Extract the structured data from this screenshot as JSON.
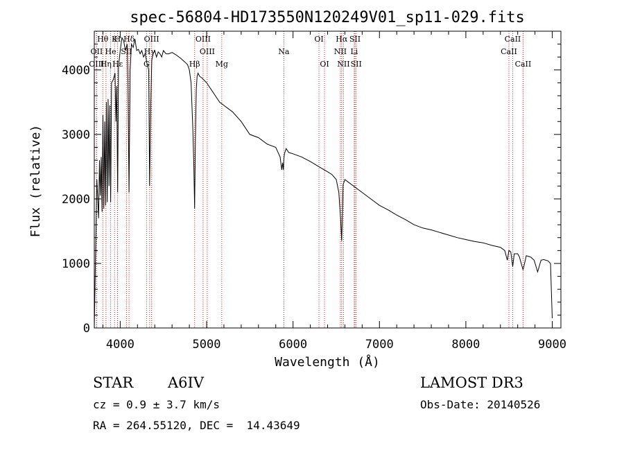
{
  "chart_data": {
    "type": "line",
    "title": "spec-56804-HD173550N120249V01_sp11-029.fits",
    "xlabel": "Wavelength (Å)",
    "ylabel": "Flux (relative)",
    "xlim": [
      3700,
      9100
    ],
    "ylim": [
      0,
      4600
    ],
    "xticks": [
      4000,
      5000,
      6000,
      7000,
      8000,
      9000
    ],
    "xtick_labels": [
      "4000",
      "5000",
      "6000",
      "7000",
      "8000",
      "9000"
    ],
    "yticks": [
      0,
      1000,
      2000,
      3000,
      4000
    ],
    "ytick_labels": [
      "0",
      "1000",
      "2000",
      "3000",
      "4000"
    ],
    "grid": false,
    "series": [
      {
        "name": "spectrum",
        "x": [
          3700,
          3730,
          3750,
          3760,
          3770,
          3780,
          3790,
          3800,
          3810,
          3820,
          3830,
          3840,
          3850,
          3860,
          3870,
          3880,
          3889,
          3900,
          3920,
          3940,
          3950,
          3960,
          3970,
          3980,
          4000,
          4020,
          4040,
          4060,
          4080,
          4090,
          4102,
          4115,
          4130,
          4150,
          4170,
          4190,
          4210,
          4230,
          4250,
          4270,
          4290,
          4310,
          4330,
          4340,
          4350,
          4365,
          4380,
          4400,
          4420,
          4440,
          4460,
          4480,
          4500,
          4530,
          4560,
          4600,
          4650,
          4700,
          4750,
          4780,
          4800,
          4820,
          4840,
          4852,
          4861,
          4870,
          4880,
          4890,
          4900,
          4920,
          4950,
          5000,
          5050,
          5100,
          5150,
          5200,
          5250,
          5300,
          5400,
          5500,
          5600,
          5700,
          5800,
          5850,
          5870,
          5880,
          5889,
          5893,
          5900,
          5920,
          5950,
          6000,
          6100,
          6200,
          6300,
          6400,
          6450,
          6500,
          6530,
          6550,
          6563,
          6570,
          6580,
          6600,
          6650,
          6700,
          6800,
          6900,
          7000,
          7100,
          7200,
          7300,
          7400,
          7500,
          7600,
          7700,
          7800,
          7900,
          8000,
          8100,
          8200,
          8300,
          8400,
          8450,
          8480,
          8498,
          8520,
          8542,
          8560,
          8600,
          8620,
          8662,
          8700,
          8750,
          8790,
          8830,
          8870,
          8900,
          8950,
          8980,
          9000
        ],
        "values": [
          0,
          2300,
          1700,
          2600,
          2050,
          2650,
          1800,
          3300,
          1850,
          3200,
          1900,
          3500,
          1950,
          3550,
          2200,
          3450,
          1950,
          3800,
          3850,
          3950,
          3200,
          3750,
          2100,
          4050,
          4300,
          4500,
          4450,
          4300,
          4400,
          3800,
          2100,
          4000,
          4400,
          4350,
          4480,
          4300,
          4320,
          4250,
          4300,
          4200,
          4250,
          4100,
          4000,
          2200,
          3200,
          4150,
          4250,
          4300,
          4200,
          4280,
          4250,
          4200,
          4300,
          4250,
          4250,
          4270,
          4230,
          4180,
          4120,
          4080,
          4000,
          3800,
          3100,
          2500,
          1850,
          2900,
          3700,
          3900,
          3950,
          3900,
          3870,
          3800,
          3700,
          3600,
          3500,
          3450,
          3400,
          3350,
          3200,
          3000,
          2950,
          2850,
          2800,
          2650,
          2450,
          2560,
          2450,
          2600,
          2700,
          2780,
          2720,
          2700,
          2650,
          2580,
          2500,
          2420,
          2380,
          2300,
          2100,
          1700,
          1350,
          1700,
          2220,
          2300,
          2250,
          2200,
          2100,
          2000,
          1900,
          1830,
          1750,
          1680,
          1600,
          1550,
          1520,
          1480,
          1440,
          1400,
          1370,
          1340,
          1320,
          1280,
          1250,
          1200,
          1050,
          1200,
          1180,
          950,
          1150,
          1150,
          1100,
          900,
          1120,
          1100,
          1050,
          870,
          1050,
          1060,
          1040,
          1000,
          150
        ]
      }
    ],
    "line_markers": [
      {
        "label": "Hθ",
        "x": 3798,
        "row": 1
      },
      {
        "label": "OII",
        "x": 3727,
        "row": 2
      },
      {
        "label": "OIII",
        "x": 3726,
        "row": 3
      },
      {
        "label": "K",
        "x": 3934,
        "row": 1
      },
      {
        "label": "He",
        "x": 3889,
        "row": 2
      },
      {
        "label": "Hη",
        "x": 3835,
        "row": 3
      },
      {
        "label": "Hε",
        "x": 3970,
        "row": 3
      },
      {
        "label": "H",
        "x": 3968,
        "row": 1
      },
      {
        "label": "Hδ",
        "x": 4102,
        "row": 1
      },
      {
        "label": "SII",
        "x": 4072,
        "row": 2
      },
      {
        "label": "OIII",
        "x": 4363,
        "row": 1
      },
      {
        "label": "Hγ",
        "x": 4340,
        "row": 2
      },
      {
        "label": "G",
        "x": 4305,
        "row": 3
      },
      {
        "label": "OIII",
        "x": 4959,
        "row": 1
      },
      {
        "label": "OIII",
        "x": 5007,
        "row": 2
      },
      {
        "label": "Hβ",
        "x": 4861,
        "row": 3
      },
      {
        "label": "Mg",
        "x": 5175,
        "row": 3
      },
      {
        "label": "Na",
        "x": 5893,
        "row": 2
      },
      {
        "label": "OI",
        "x": 6300,
        "row": 1
      },
      {
        "label": "OI",
        "x": 6364,
        "row": 3
      },
      {
        "label": "Hα",
        "x": 6563,
        "row": 1
      },
      {
        "label": "NII",
        "x": 6548,
        "row": 2
      },
      {
        "label": "NII",
        "x": 6584,
        "row": 3
      },
      {
        "label": "SII",
        "x": 6717,
        "row": 1
      },
      {
        "label": "Li",
        "x": 6708,
        "row": 2
      },
      {
        "label": "SII",
        "x": 6731,
        "row": 3
      },
      {
        "label": "CaII",
        "x": 8542,
        "row": 1
      },
      {
        "label": "CaII",
        "x": 8498,
        "row": 2
      },
      {
        "label": "CaII",
        "x": 8662,
        "row": 3
      }
    ],
    "colors": {
      "spectrum": "#000000",
      "markers": "#cc2222",
      "axes": "#000000"
    }
  },
  "info": {
    "class_label": "STAR",
    "subclass": "A6IV",
    "cz": "cz = 0.9 ± 3.7 km/s",
    "coords": "RA = 264.55120, DEC =  14.43649",
    "survey": "LAMOST DR3",
    "obs_date": "Obs-Date: 20140526"
  }
}
